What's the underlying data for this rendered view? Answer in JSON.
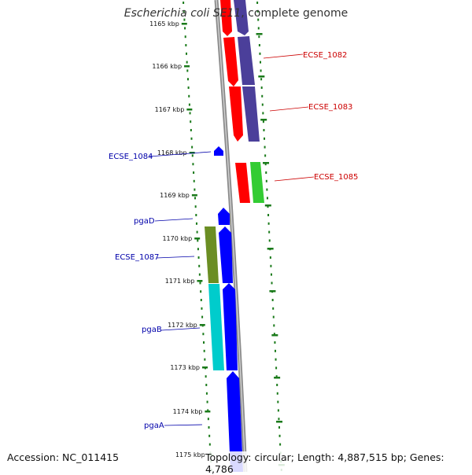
{
  "title": {
    "organism": "Escherichia coli SE11",
    "rest": ", complete genome"
  },
  "footer": {
    "accession_label": "Accession:",
    "accession": "NC_011415",
    "topology_label": "Topology:",
    "topology": "circular",
    "length_label": "Length:",
    "length": "4,887,515 bp",
    "genes_label": "Genes:",
    "genes": "4,786"
  },
  "scale": {
    "unit": "kbp",
    "ticks": [
      "1165 kbp",
      "1166 kbp",
      "1167 kbp",
      "1168 kbp",
      "1169 kbp",
      "1170 kbp",
      "1171 kbp",
      "1172 kbp",
      "1173 kbp",
      "1174 kbp",
      "1175 kbp"
    ]
  },
  "gene_labels": [
    {
      "name": "ECSE_1082",
      "side": "right",
      "color": "#cc0000"
    },
    {
      "name": "ECSE_1083",
      "side": "right",
      "color": "#cc0000"
    },
    {
      "name": "ECSE_1084",
      "side": "left",
      "color": "#0000aa"
    },
    {
      "name": "ECSE_1085",
      "side": "right",
      "color": "#cc0000"
    },
    {
      "name": "pgaD",
      "side": "left",
      "color": "#0000aa"
    },
    {
      "name": "ECSE_1087",
      "side": "left",
      "color": "#0000aa"
    },
    {
      "name": "pgaB",
      "side": "left",
      "color": "#0000aa"
    },
    {
      "name": "pgaA",
      "side": "left",
      "color": "#0000aa"
    }
  ],
  "colors": {
    "forward_cds": "#ff0000",
    "reverse_cds": "#0000ff",
    "purple_track": "#4b3f9a",
    "green_track": "#33cc33",
    "olive_track": "#6b8e23",
    "cyan_track": "#00cccc",
    "backbone": "#888888",
    "tick_green": "#1a7a1a"
  }
}
